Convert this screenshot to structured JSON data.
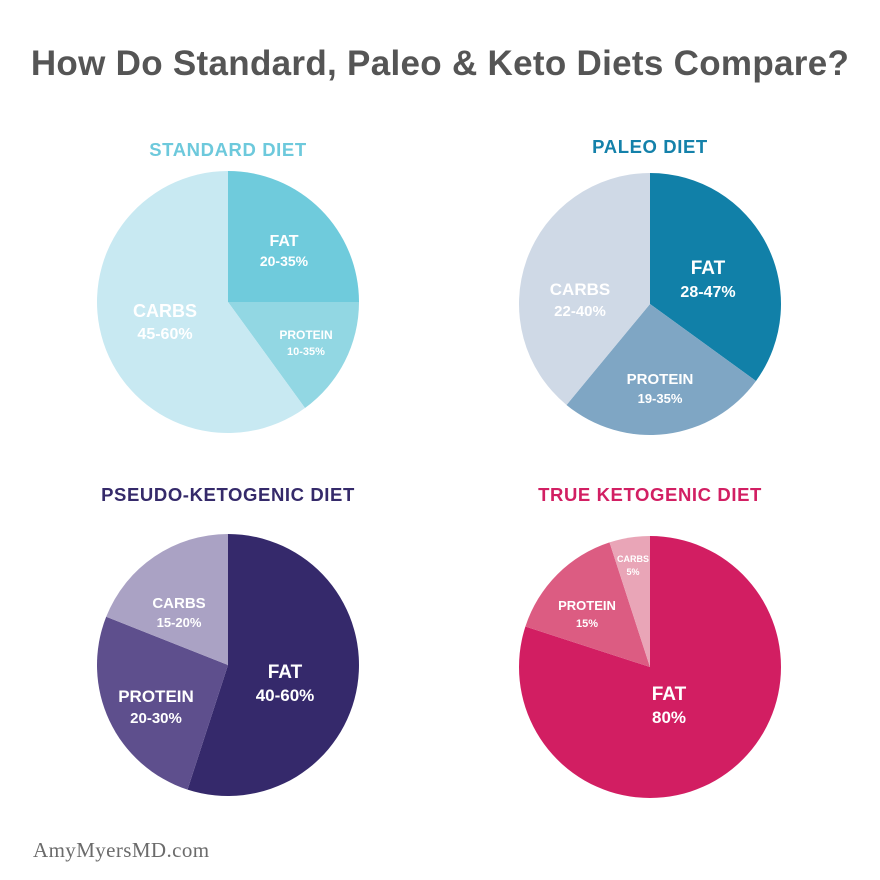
{
  "title": "How Do Standard, Paleo & Keto Diets Compare?",
  "watermark": "AmyMyersMD.com",
  "chart_data": [
    {
      "type": "pie",
      "title": "STANDARD DIET",
      "title_color": "#6dc9dc",
      "slices": [
        {
          "name": "FAT",
          "range": "20-35%",
          "value": 25,
          "color": "#6fcbdc"
        },
        {
          "name": "PROTEIN",
          "range": "10-35%",
          "value": 15,
          "color": "#92d7e3"
        },
        {
          "name": "CARBS",
          "range": "45-60%",
          "value": 60,
          "color": "#c8e9f2"
        }
      ]
    },
    {
      "type": "pie",
      "title": "PALEO DIET",
      "title_color": "#1481aa",
      "slices": [
        {
          "name": "FAT",
          "range": "28-47%",
          "value": 35,
          "color": "#1180a8"
        },
        {
          "name": "PROTEIN",
          "range": "19-35%",
          "value": 26,
          "color": "#7fa6c4"
        },
        {
          "name": "CARBS",
          "range": "22-40%",
          "value": 39,
          "color": "#cfd9e6"
        }
      ]
    },
    {
      "type": "pie",
      "title": "PSEUDO-KETOGENIC DIET",
      "title_color": "#352a6a",
      "slices": [
        {
          "name": "FAT",
          "range": "40-60%",
          "value": 55,
          "color": "#35296b"
        },
        {
          "name": "PROTEIN",
          "range": "20-30%",
          "value": 26,
          "color": "#5e4f8d"
        },
        {
          "name": "CARBS",
          "range": "15-20%",
          "value": 19,
          "color": "#aaa2c4"
        }
      ]
    },
    {
      "type": "pie",
      "title": "TRUE KETOGENIC DIET",
      "title_color": "#d21f63",
      "slices": [
        {
          "name": "FAT",
          "range": "80%",
          "value": 80,
          "color": "#d21e62"
        },
        {
          "name": "PROTEIN",
          "range": "15%",
          "value": 15,
          "color": "#dc5c82"
        },
        {
          "name": "CARBS",
          "range": "5%",
          "value": 5,
          "color": "#e9a5b7"
        }
      ]
    }
  ]
}
